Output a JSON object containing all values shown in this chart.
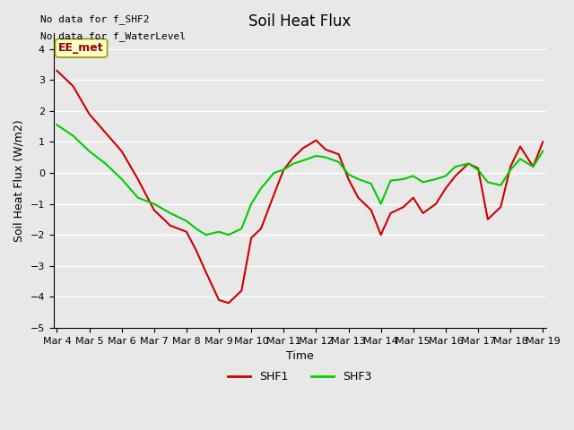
{
  "title": "Soil Heat Flux",
  "ylabel": "Soil Heat Flux (W/m2)",
  "xlabel": "Time",
  "ylim": [
    -5.0,
    4.5
  ],
  "yticks": [
    -5.0,
    -4.0,
    -3.0,
    -2.0,
    -1.0,
    0.0,
    1.0,
    2.0,
    3.0,
    4.0
  ],
  "background_color": "#e8e8e8",
  "plot_bg_color": "#e8e8e8",
  "grid_color": "#ffffff",
  "annotation_text1": "No data for f_SHF2",
  "annotation_text2": "No data for f_WaterLevel",
  "box_label": "EE_met",
  "box_facecolor": "#ffffcc",
  "box_edgecolor": "#999900",
  "box_text_color": "#990000",
  "shf1_color": "#cc0000",
  "shf3_color": "#00cc00",
  "line_width": 1.5,
  "x_labels": [
    "Mar 4",
    "Mar 5",
    "Mar 6",
    "Mar 7",
    "Mar 8",
    "Mar 9",
    "Mar 10",
    "Mar 11",
    "Mar 12",
    "Mar 13",
    "Mar 14",
    "Mar 15",
    "Mar 16",
    "Mar 17",
    "Mar 18",
    "Mar 19"
  ],
  "shf1_x": [
    0,
    0.5,
    1,
    1.5,
    2,
    2.5,
    3,
    3.5,
    4,
    4.3,
    4.6,
    5,
    5.3,
    5.7,
    6,
    6.3,
    6.7,
    7,
    7.3,
    7.6,
    8,
    8.3,
    8.7,
    9,
    9.3,
    9.7,
    10,
    10.3,
    10.7,
    11,
    11.3,
    11.7,
    12,
    12.3,
    12.7,
    13,
    13.3,
    13.7,
    14,
    14.3,
    14.7,
    15
  ],
  "shf1_y": [
    3.3,
    2.8,
    1.9,
    1.3,
    0.7,
    -0.2,
    -1.2,
    -1.7,
    -1.9,
    -2.5,
    -3.2,
    -4.1,
    -4.2,
    -3.8,
    -2.1,
    -1.8,
    -0.7,
    0.1,
    0.5,
    0.8,
    1.05,
    0.75,
    0.6,
    -0.2,
    -0.8,
    -1.2,
    -2.0,
    -1.3,
    -1.1,
    -0.8,
    -1.3,
    -1.0,
    -0.5,
    -0.1,
    0.3,
    0.15,
    -1.5,
    -1.1,
    0.2,
    0.85,
    0.2,
    1.0
  ],
  "shf3_x": [
    0,
    0.5,
    1,
    1.5,
    2,
    2.5,
    3,
    3.5,
    4,
    4.3,
    4.6,
    5,
    5.3,
    5.7,
    6,
    6.3,
    6.7,
    7,
    7.3,
    7.6,
    8,
    8.3,
    8.7,
    9,
    9.3,
    9.7,
    10,
    10.3,
    10.7,
    11,
    11.3,
    11.7,
    12,
    12.3,
    12.7,
    13,
    13.3,
    13.7,
    14,
    14.3,
    14.7,
    15
  ],
  "shf3_y": [
    1.55,
    1.2,
    0.7,
    0.3,
    -0.2,
    -0.8,
    -1.0,
    -1.3,
    -1.55,
    -1.8,
    -2.0,
    -1.9,
    -2.0,
    -1.8,
    -1.0,
    -0.5,
    0.0,
    0.1,
    0.3,
    0.4,
    0.55,
    0.5,
    0.35,
    -0.05,
    -0.2,
    -0.35,
    -1.0,
    -0.25,
    -0.2,
    -0.1,
    -0.3,
    -0.2,
    -0.1,
    0.2,
    0.3,
    0.1,
    -0.3,
    -0.4,
    0.1,
    0.45,
    0.2,
    0.7
  ]
}
